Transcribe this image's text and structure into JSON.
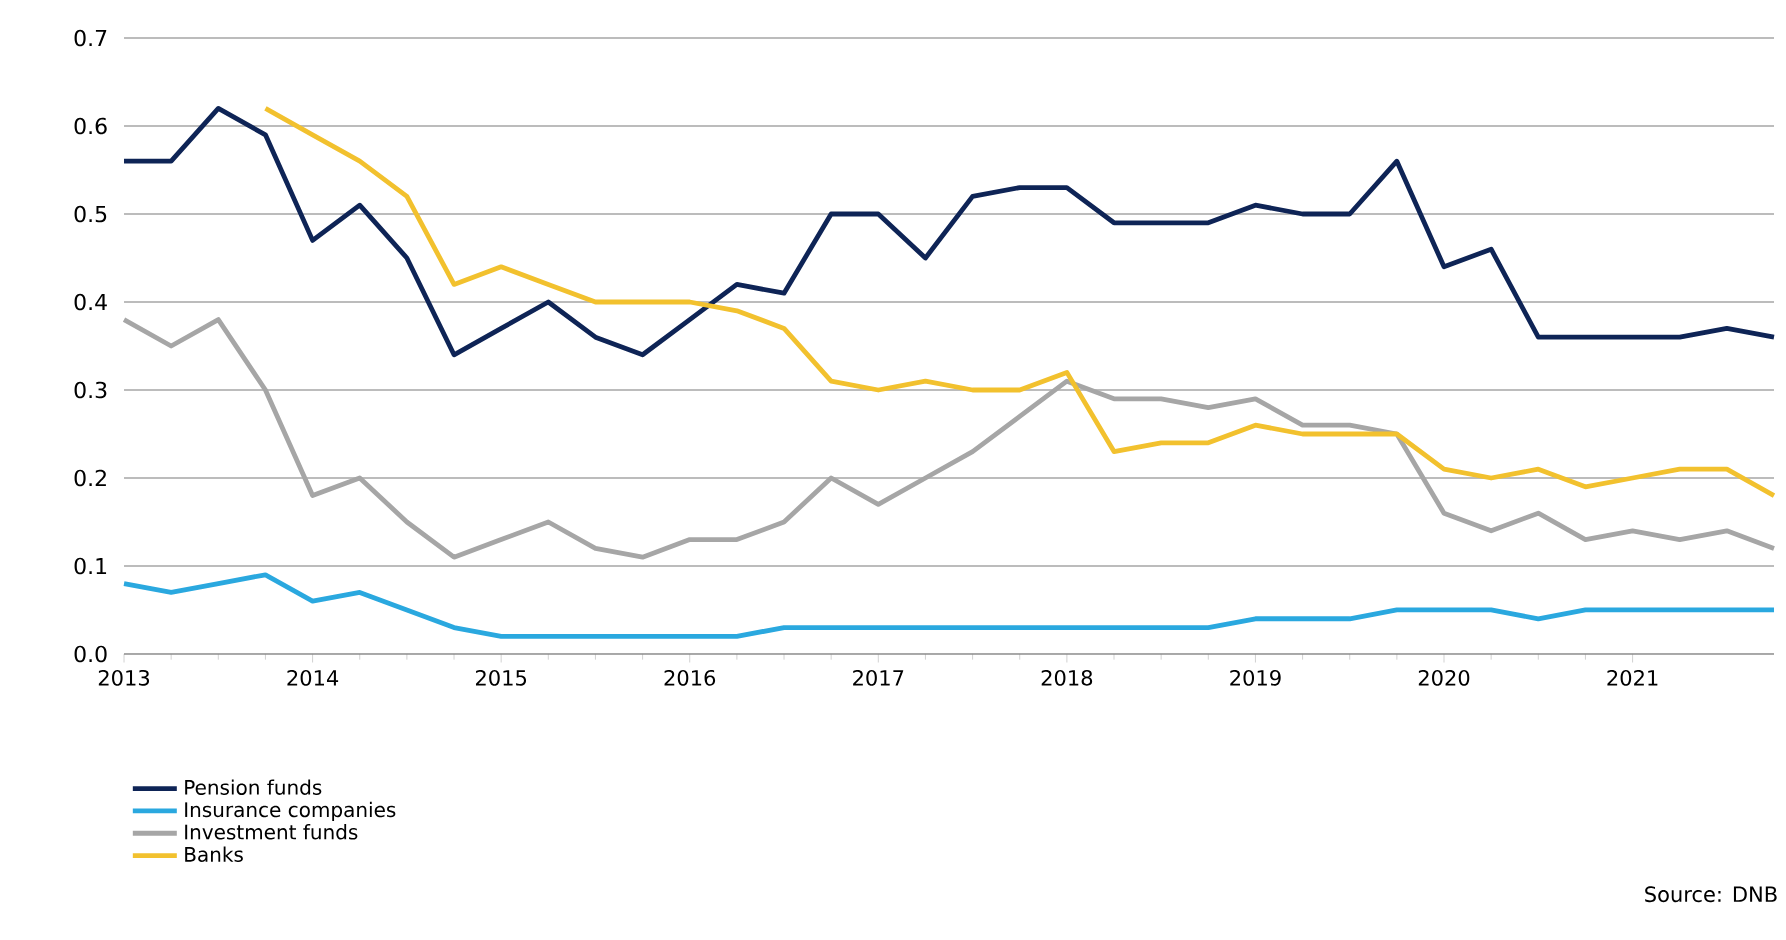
{
  "chart_data": {
    "type": "line",
    "x": [
      2013,
      2013.25,
      2013.5,
      2013.75,
      2014,
      2014.25,
      2014.5,
      2014.75,
      2015,
      2015.25,
      2015.5,
      2015.75,
      2016,
      2016.25,
      2016.5,
      2016.75,
      2017,
      2017.25,
      2017.5,
      2017.75,
      2018,
      2018.25,
      2018.5,
      2018.75,
      2019,
      2019.25,
      2019.5,
      2019.75,
      2020,
      2020.25,
      2020.5,
      2020.75,
      2021,
      2021.25,
      2021.5,
      2021.75
    ],
    "series": [
      {
        "name": "Pension funds",
        "color": "#0e2456",
        "values": [
          0.56,
          0.56,
          0.62,
          0.59,
          0.47,
          0.51,
          0.45,
          0.34,
          0.37,
          0.4,
          0.36,
          0.34,
          0.38,
          0.42,
          0.41,
          0.5,
          0.5,
          0.45,
          0.52,
          0.53,
          0.53,
          0.49,
          0.49,
          0.49,
          0.51,
          0.5,
          0.5,
          0.56,
          0.44,
          0.46,
          0.36,
          0.36,
          0.36,
          0.36,
          0.37,
          0.36
        ]
      },
      {
        "name": "Insurance companies",
        "color": "#2aa8df",
        "values": [
          0.08,
          0.07,
          0.08,
          0.09,
          0.06,
          0.07,
          0.05,
          0.03,
          0.02,
          0.02,
          0.02,
          0.02,
          0.02,
          0.02,
          0.03,
          0.03,
          0.03,
          0.03,
          0.03,
          0.03,
          0.03,
          0.03,
          0.03,
          0.03,
          0.04,
          0.04,
          0.04,
          0.05,
          0.05,
          0.05,
          0.04,
          0.05,
          0.05,
          0.05,
          0.05,
          0.05
        ]
      },
      {
        "name": "Investment funds",
        "color": "#a6a6a6",
        "values": [
          0.38,
          0.35,
          0.38,
          0.3,
          0.18,
          0.2,
          0.15,
          0.11,
          0.13,
          0.15,
          0.12,
          0.11,
          0.13,
          0.13,
          0.15,
          0.2,
          0.17,
          0.2,
          0.23,
          0.27,
          0.31,
          0.29,
          0.29,
          0.28,
          0.29,
          0.26,
          0.26,
          0.25,
          0.16,
          0.14,
          0.16,
          0.13,
          0.14,
          0.13,
          0.14,
          0.12
        ]
      },
      {
        "name": "Banks",
        "color": "#f2c12e",
        "values": [
          null,
          null,
          null,
          0.62,
          0.59,
          0.56,
          0.52,
          0.42,
          0.44,
          0.42,
          0.4,
          0.4,
          0.4,
          0.39,
          0.37,
          0.31,
          0.3,
          0.31,
          0.3,
          0.3,
          0.32,
          0.23,
          0.24,
          0.24,
          0.26,
          0.25,
          0.25,
          0.25,
          0.21,
          0.2,
          0.21,
          0.19,
          0.2,
          0.21,
          0.21,
          0.18
        ]
      }
    ],
    "xlim": [
      2013,
      2021.75
    ],
    "xticks": [
      2013,
      2014,
      2015,
      2016,
      2017,
      2018,
      2019,
      2020,
      2021
    ],
    "ylim": [
      0,
      0.7
    ],
    "yticks": [
      {
        "value": 0,
        "label": "0.0"
      },
      {
        "value": 0.1,
        "label": "0.1"
      },
      {
        "value": 0.2,
        "label": "0.2"
      },
      {
        "value": 0.3,
        "label": "0.3"
      },
      {
        "value": 0.4,
        "label": "0.4"
      },
      {
        "value": 0.5,
        "label": "0.5"
      },
      {
        "value": 0.6,
        "label": "0.6"
      },
      {
        "value": 0.7,
        "label": "0.7"
      }
    ],
    "grid": "y",
    "legend": "bottom left",
    "annotations": [
      "Source: DNB"
    ]
  }
}
